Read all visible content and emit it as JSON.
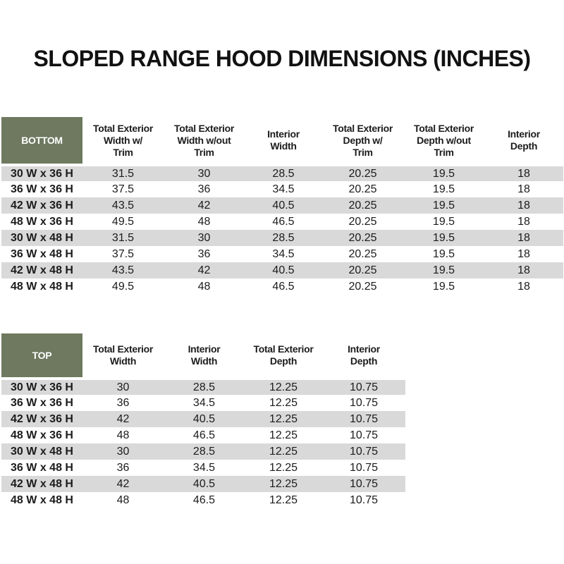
{
  "title": "SLOPED RANGE HOOD DIMENSIONS (INCHES)",
  "colors": {
    "corner_header_green": "#6E7960",
    "row_stripe_gray": "#D9D9D9",
    "row_alt_white": "#FFFFFF",
    "text": "#1C1C1C"
  },
  "tables": [
    {
      "corner_label": "BOTTOM",
      "columns": [
        "Total Exterior\nWidth w/\nTrim",
        "Total Exterior\nWidth w/out\nTrim",
        "Interior\nWidth",
        "Total Exterior\nDepth w/\nTrim",
        "Total Exterior\nDepth w/out\nTrim",
        "Interior\nDepth"
      ],
      "rows": [
        {
          "label": "30 W x 36 H",
          "values": [
            "31.5",
            "30",
            "28.5",
            "20.25",
            "19.5",
            "18"
          ]
        },
        {
          "label": "36 W x 36 H",
          "values": [
            "37.5",
            "36",
            "34.5",
            "20.25",
            "19.5",
            "18"
          ]
        },
        {
          "label": "42 W x 36 H",
          "values": [
            "43.5",
            "42",
            "40.5",
            "20.25",
            "19.5",
            "18"
          ]
        },
        {
          "label": "48 W x 36 H",
          "values": [
            "49.5",
            "48",
            "46.5",
            "20.25",
            "19.5",
            "18"
          ]
        },
        {
          "label": "30 W x 48 H",
          "values": [
            "31.5",
            "30",
            "28.5",
            "20.25",
            "19.5",
            "18"
          ]
        },
        {
          "label": "36 W x 48 H",
          "values": [
            "37.5",
            "36",
            "34.5",
            "20.25",
            "19.5",
            "18"
          ]
        },
        {
          "label": "42 W x 48 H",
          "values": [
            "43.5",
            "42",
            "40.5",
            "20.25",
            "19.5",
            "18"
          ]
        },
        {
          "label": "48 W x 48 H",
          "values": [
            "49.5",
            "48",
            "46.5",
            "20.25",
            "19.5",
            "18"
          ]
        }
      ]
    },
    {
      "corner_label": "TOP",
      "columns": [
        "Total Exterior\nWidth",
        "Interior\nWidth",
        "Total Exterior\nDepth",
        "Interior\nDepth"
      ],
      "rows": [
        {
          "label": "30 W x 36 H",
          "values": [
            "30",
            "28.5",
            "12.25",
            "10.75"
          ]
        },
        {
          "label": "36 W x 36 H",
          "values": [
            "36",
            "34.5",
            "12.25",
            "10.75"
          ]
        },
        {
          "label": "42 W x 36 H",
          "values": [
            "42",
            "40.5",
            "12.25",
            "10.75"
          ]
        },
        {
          "label": "48 W x 36 H",
          "values": [
            "48",
            "46.5",
            "12.25",
            "10.75"
          ]
        },
        {
          "label": "30 W x 48 H",
          "values": [
            "30",
            "28.5",
            "12.25",
            "10.75"
          ]
        },
        {
          "label": "36 W x 48 H",
          "values": [
            "36",
            "34.5",
            "12.25",
            "10.75"
          ]
        },
        {
          "label": "42 W x 48 H",
          "values": [
            "42",
            "40.5",
            "12.25",
            "10.75"
          ]
        },
        {
          "label": "48 W x 48 H",
          "values": [
            "48",
            "46.5",
            "12.25",
            "10.75"
          ]
        }
      ]
    }
  ]
}
